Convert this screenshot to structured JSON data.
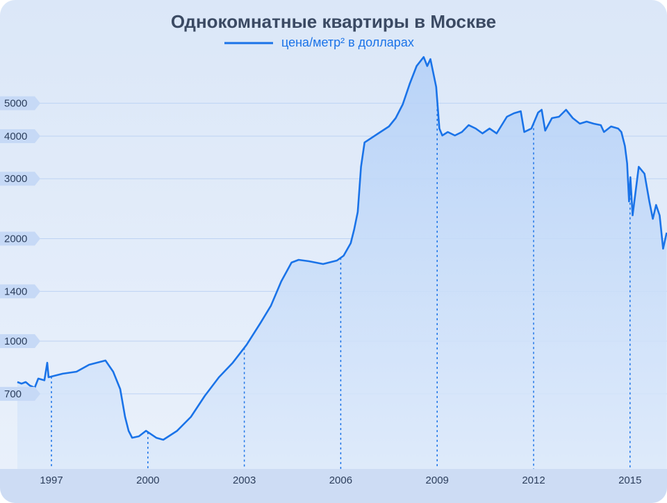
{
  "chart_data": {
    "type": "line",
    "title": "Однокомнатные квартиры в Москве",
    "log_scale": true,
    "grid": true,
    "legend": "top",
    "x": [
      1995.94,
      1996.07,
      1996.2,
      1996.33,
      1996.48,
      1996.59,
      1996.78,
      1996.87,
      1996.91,
      1997.35,
      1997.78,
      1998.17,
      1998.68,
      1998.92,
      1999.14,
      1999.29,
      1999.4,
      1999.51,
      1999.72,
      1999.94,
      2000.26,
      2000.48,
      2000.91,
      2001.34,
      2001.77,
      2002.21,
      2002.64,
      2003.07,
      2003.5,
      2003.83,
      2004.15,
      2004.47,
      2004.69,
      2005.01,
      2005.45,
      2005.88,
      2006.09,
      2006.31,
      2006.42,
      2006.53,
      2006.63,
      2006.74,
      2007.17,
      2007.5,
      2007.71,
      2007.93,
      2008.15,
      2008.36,
      2008.58,
      2008.69,
      2008.79,
      2008.97,
      2009.07,
      2009.16,
      2009.33,
      2009.55,
      2009.77,
      2009.98,
      2010.2,
      2010.41,
      2010.63,
      2010.85,
      2011.17,
      2011.39,
      2011.6,
      2011.71,
      2011.93,
      2012.14,
      2012.25,
      2012.36,
      2012.57,
      2012.79,
      2013.01,
      2013.22,
      2013.44,
      2013.65,
      2013.87,
      2014.09,
      2014.19,
      2014.41,
      2014.63,
      2014.73,
      2014.84,
      2014.91,
      2014.97,
      2015.01,
      2015.08,
      2015.27,
      2015.45,
      2015.6,
      2015.71,
      2015.81,
      2015.92,
      2016.03,
      2016.14
    ],
    "series": [
      {
        "name": "цена/метр² в долларах",
        "color": "#1a73e8",
        "values": [
          758,
          750,
          758,
          740,
          730,
          776,
          767,
          864,
          783,
          802,
          813,
          852,
          877,
          813,
          723,
          599,
          545,
          520,
          525,
          545,
          520,
          513,
          545,
          599,
          690,
          783,
          864,
          975,
          1130,
          1271,
          1498,
          1701,
          1733,
          1717,
          1685,
          1725,
          1782,
          1940,
          2131,
          2397,
          3252,
          3834,
          4076,
          4272,
          4520,
          4965,
          5716,
          6429,
          6834,
          6429,
          6739,
          5584,
          4212,
          4019,
          4115,
          4019,
          4115,
          4312,
          4212,
          4076,
          4212,
          4076,
          4563,
          4671,
          4737,
          4115,
          4212,
          4693,
          4782,
          4154,
          4520,
          4563,
          4782,
          4520,
          4353,
          4415,
          4353,
          4312,
          4115,
          4272,
          4212,
          4115,
          3745,
          3330,
          2572,
          3031,
          2341,
          3252,
          3103,
          2572,
          2287,
          2512,
          2341,
          1868,
          2082
        ]
      }
    ],
    "xlim": [
      1995.94,
      2016.15
    ],
    "xticks": [
      1997,
      2000,
      2003,
      2006,
      2009,
      2012,
      2015
    ],
    "ylim": [
      421,
      8730
    ],
    "yticks": [
      700,
      1000,
      1400,
      2000,
      3000,
      4000,
      5000
    ]
  }
}
